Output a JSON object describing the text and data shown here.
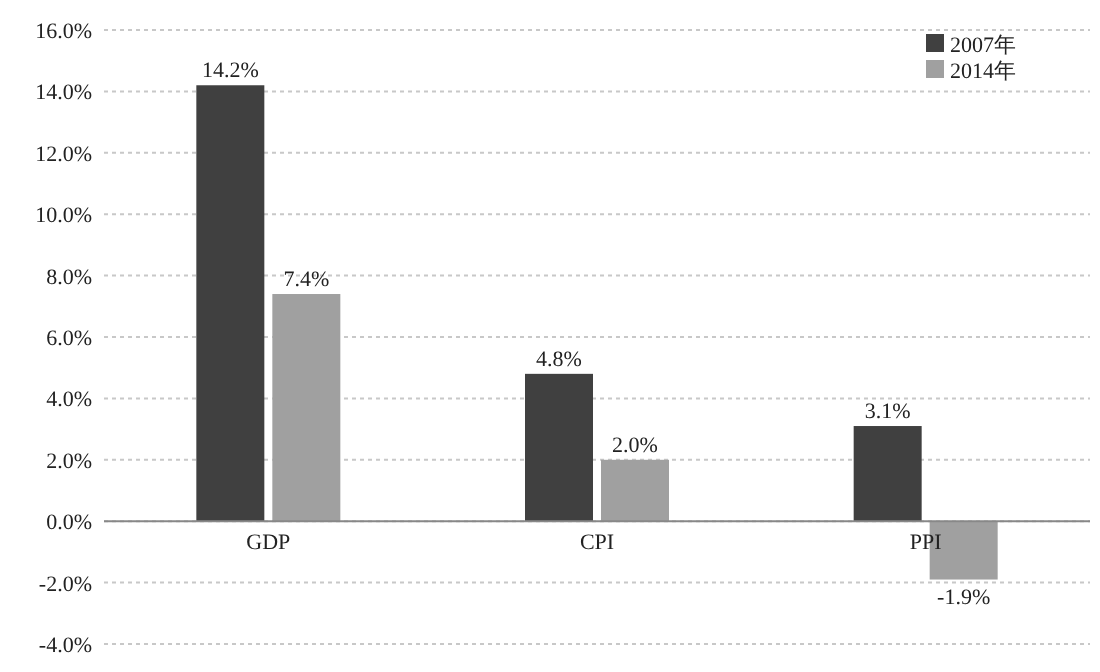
{
  "chart_data": {
    "type": "bar",
    "categories": [
      "GDP",
      "CPI",
      "PPI"
    ],
    "series": [
      {
        "name": "2007年",
        "color": "#404040",
        "values": [
          14.2,
          4.8,
          3.1
        ],
        "value_labels": [
          "14.2%",
          "4.8%",
          "3.1%"
        ]
      },
      {
        "name": "2014年",
        "color": "#a0a0a0",
        "values": [
          7.4,
          2.0,
          -1.9
        ],
        "value_labels": [
          "7.4%",
          "2.0%",
          "-1.9%"
        ]
      }
    ],
    "ylim": [
      -4,
      16
    ],
    "yticks": [
      {
        "value": -4,
        "label": "-4.0%"
      },
      {
        "value": -2,
        "label": "-2.0%"
      },
      {
        "value": 0,
        "label": "0.0%"
      },
      {
        "value": 2,
        "label": "2.0%"
      },
      {
        "value": 4,
        "label": "4.0%"
      },
      {
        "value": 6,
        "label": "6.0%"
      },
      {
        "value": 8,
        "label": "8.0%"
      },
      {
        "value": 10,
        "label": "10.0%"
      },
      {
        "value": 12,
        "label": "12.0%"
      },
      {
        "value": 14,
        "label": "14.0%"
      },
      {
        "value": 16,
        "label": "16.0%"
      }
    ],
    "grid": "y",
    "legend": "top right"
  }
}
